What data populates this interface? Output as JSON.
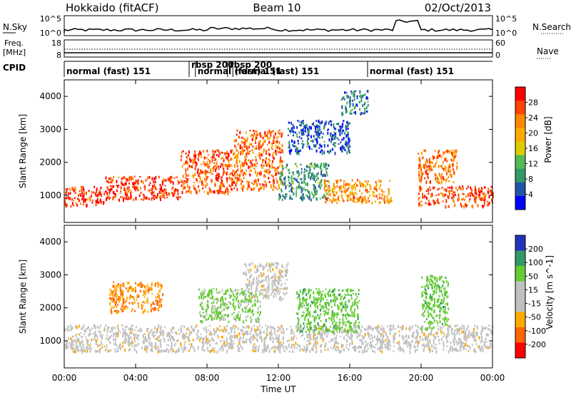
{
  "header": {
    "title_left": "Hokkaido (fitACF)",
    "title_center": "Beam 10",
    "title_right": "02/Oct/2013"
  },
  "params": {
    "nsky_label": "N.Sky",
    "nsky_ticks": [
      "10^5",
      "10^0"
    ],
    "nsearch_label": "N.Search",
    "nsearch_ticks": [
      "10^5",
      "10^0"
    ],
    "freq_label_1": "Freq.",
    "freq_label_2": "[MHz]",
    "freq_ticks": [
      "18",
      "8"
    ],
    "nave_label": "Nave",
    "nave_ticks": [
      "60",
      "0"
    ],
    "cpid_label": "CPID",
    "modes": [
      {
        "label": "normal (fast) 151",
        "start_hour": 0
      },
      {
        "label": "rbsp 200",
        "start_hour": 7.0
      },
      {
        "label": "normal (fast) 151",
        "start_hour": 7.35
      },
      {
        "label": "rbsp 200",
        "start_hour": 9.15
      },
      {
        "label": "normal (fast) 151",
        "start_hour": 9.45
      },
      {
        "label": "normal (fast) 151",
        "start_hour": 17.0
      }
    ]
  },
  "xaxis": {
    "label": "Time UT",
    "ticks": [
      "00:00",
      "04:00",
      "08:00",
      "12:00",
      "16:00",
      "20:00",
      "00:00"
    ]
  },
  "panels": {
    "power": {
      "ylabel": "Slant Range [km]",
      "yticks": [
        "1000",
        "2000",
        "3000",
        "4000"
      ],
      "cbar_label": "Power [dB]",
      "cbar_ticks": [
        "28",
        "24",
        "20",
        "16",
        "12",
        "8",
        "4"
      ],
      "cbar_colors": [
        "#ff0000",
        "#ff4400",
        "#ff8800",
        "#ffaa00",
        "#ddcc00",
        "#55bb55",
        "#339966",
        "#2255aa",
        "#0000ff"
      ]
    },
    "velocity": {
      "ylabel": "Slant Range [km]",
      "yticks": [
        "1000",
        "2000",
        "3000",
        "4000"
      ],
      "cbar_label": "Velocity [m s^-1]",
      "cbar_ticks": [
        "200",
        "100",
        "50",
        "15",
        "-15",
        "-50",
        "-100",
        "-200"
      ],
      "cbar_colors": [
        "#2233bb",
        "#339966",
        "#66cc33",
        "#c0c0c0",
        "#c0c0c0",
        "#ffaa00",
        "#ff6600",
        "#ff0000"
      ]
    }
  },
  "chart_data": {
    "type": "heatmap",
    "title": "Hokkaido (fitACF) Beam 10 02/Oct/2013",
    "xlabel": "Time UT",
    "ylabel": "Slant Range [km]",
    "x_range_hours": [
      0,
      24
    ],
    "y_range_km": [
      180,
      4500
    ],
    "power_regions": [
      {
        "t": [
          0,
          2.2
        ],
        "r": [
          700,
          1300
        ],
        "db": 28
      },
      {
        "t": [
          2.2,
          6.5
        ],
        "r": [
          900,
          1600
        ],
        "db": 28
      },
      {
        "t": [
          6.5,
          9.5
        ],
        "r": [
          1100,
          2400
        ],
        "db": 26
      },
      {
        "t": [
          9.5,
          12.2
        ],
        "r": [
          1200,
          3000
        ],
        "db": 25
      },
      {
        "t": [
          12.0,
          14.8
        ],
        "r": [
          900,
          2000
        ],
        "db": 10
      },
      {
        "t": [
          12.5,
          16.0
        ],
        "r": [
          2300,
          3300
        ],
        "db": 6
      },
      {
        "t": [
          14.5,
          18.3
        ],
        "r": [
          800,
          1500
        ],
        "db": 22
      },
      {
        "t": [
          15.5,
          17.0
        ],
        "r": [
          3500,
          4200
        ],
        "db": 8
      },
      {
        "t": [
          19.8,
          24
        ],
        "r": [
          700,
          1300
        ],
        "db": 27
      },
      {
        "t": [
          19.8,
          22.0
        ],
        "r": [
          1400,
          2400
        ],
        "db": 24
      }
    ],
    "velocity_regions": [
      {
        "t": [
          0,
          24
        ],
        "r": [
          700,
          1500
        ],
        "v": 0
      },
      {
        "t": [
          2.5,
          5.5
        ],
        "r": [
          1900,
          2800
        ],
        "v": -50
      },
      {
        "t": [
          7.5,
          11.0
        ],
        "r": [
          1600,
          2600
        ],
        "v": 40
      },
      {
        "t": [
          10.0,
          12.5
        ],
        "r": [
          2300,
          3400
        ],
        "v": 0
      },
      {
        "t": [
          13.0,
          16.5
        ],
        "r": [
          1300,
          2600
        ],
        "v": 60
      },
      {
        "t": [
          20.0,
          21.5
        ],
        "r": [
          1400,
          3000
        ],
        "v": 60
      }
    ]
  }
}
